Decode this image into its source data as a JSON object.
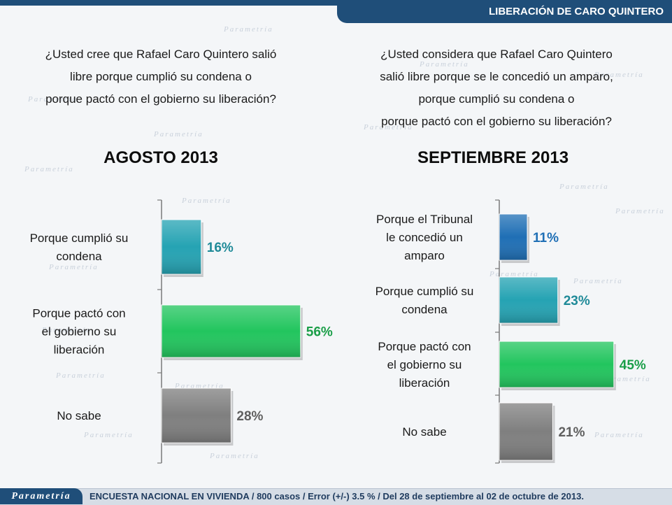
{
  "header": {
    "banner": "LIBERACIÓN DE CARO QUINTERO"
  },
  "left": {
    "question": [
      "¿Usted cree que Rafael Caro Quintero salió",
      "libre porque cumplió su condena o",
      "porque pactó con el gobierno su liberación?"
    ],
    "period": "AGOSTO 2013"
  },
  "right": {
    "question": [
      "¿Usted considera que Rafael Caro Quintero",
      "salió libre porque se le concedió un amparo,",
      "porque cumplió su condena o",
      "porque pactó con el gobierno su liberación?"
    ],
    "period": "SEPTIEMBRE 2013"
  },
  "footer": {
    "logo": "Parametría",
    "note": "ENCUESTA NACIONAL EN VIVIENDA / 800 casos / Error (+/-) 3.5 % / Del 28 de septiembre al 02 de octubre de 2013."
  },
  "watermark": "Parametría",
  "colors": {
    "banner": "#1f4e79",
    "teal": "#25a3b3",
    "green": "#22c55e",
    "gray": "#7f7f7f",
    "blue": "#1f6fb5"
  },
  "chart_data": [
    {
      "type": "bar",
      "orientation": "horizontal",
      "title": "AGOSTO 2013",
      "categories": [
        [
          "Porque cumplió su",
          "condena"
        ],
        [
          "Porque pactó con",
          "el gobierno su",
          "liberación"
        ],
        [
          "No sabe"
        ]
      ],
      "values": [
        16,
        56,
        28
      ],
      "value_labels": [
        "16%",
        "56%",
        "28%"
      ],
      "bar_colors": [
        "#25a3b3",
        "#22c55e",
        "#7f7f7f"
      ],
      "label_colors": [
        "#1f8a98",
        "#1a9e48",
        "#5f5f5f"
      ],
      "xlim": [
        0,
        60
      ]
    },
    {
      "type": "bar",
      "orientation": "horizontal",
      "title": "SEPTIEMBRE 2013",
      "categories": [
        [
          "Porque el Tribunal",
          "le concedió un",
          "amparo"
        ],
        [
          "Porque cumplió su",
          "condena"
        ],
        [
          "Porque pactó con",
          "el gobierno su",
          "liberación"
        ],
        [
          "No sabe"
        ]
      ],
      "values": [
        11,
        23,
        45,
        21
      ],
      "value_labels": [
        "11%",
        "23%",
        "45%",
        "21%"
      ],
      "bar_colors": [
        "#1f6fb5",
        "#25a3b3",
        "#22c55e",
        "#7f7f7f"
      ],
      "label_colors": [
        "#1f6fb5",
        "#1f8a98",
        "#1a9e48",
        "#5f5f5f"
      ],
      "xlim": [
        0,
        60
      ]
    }
  ]
}
